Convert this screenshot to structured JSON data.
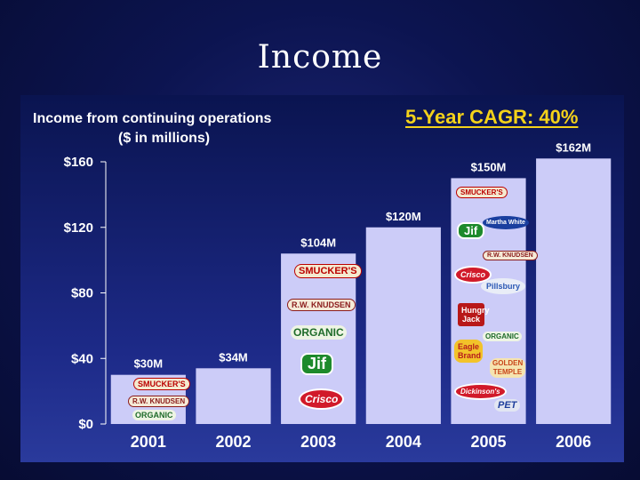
{
  "slide": {
    "title": "Income"
  },
  "chart_data": {
    "type": "bar",
    "title": "Income from continuing operations",
    "subtitle": "($ in millions)",
    "annotation": "5-Year CAGR: 40%",
    "categories": [
      "2001",
      "2002",
      "2003",
      "2004",
      "2005",
      "2006"
    ],
    "values": [
      30,
      34,
      104,
      120,
      150,
      162
    ],
    "value_labels": [
      "$30M",
      "$34M",
      "$104M",
      "$120M",
      "$150M",
      "$162M"
    ],
    "yticks": [
      0,
      40,
      80,
      120,
      160
    ],
    "ytick_labels": [
      "$0",
      "$40",
      "$80",
      "$120",
      "$160"
    ],
    "ylim": [
      0,
      160
    ],
    "grid": false,
    "colors": {
      "bar": "#ccccf8",
      "annotation": "#f4d21a",
      "background": "#0c1450"
    }
  },
  "logos": {
    "b2001": [
      "SMUCKER'S",
      "R.W. KNUDSEN",
      "ORGANIC"
    ],
    "b2003": [
      "SMUCKER'S",
      "R.W. KNUDSEN",
      "ORGANIC",
      "Jif",
      "Crisco"
    ],
    "b2005": [
      "SMUCKER'S",
      "Jif",
      "Crisco",
      "Hungry Jack",
      "Eagle Brand",
      "Pillsbury",
      "ORGANIC",
      "R.W. KNUDSEN",
      "GOLDEN TEMPLE",
      "PET",
      "Martha White",
      "Dickinson's"
    ]
  }
}
